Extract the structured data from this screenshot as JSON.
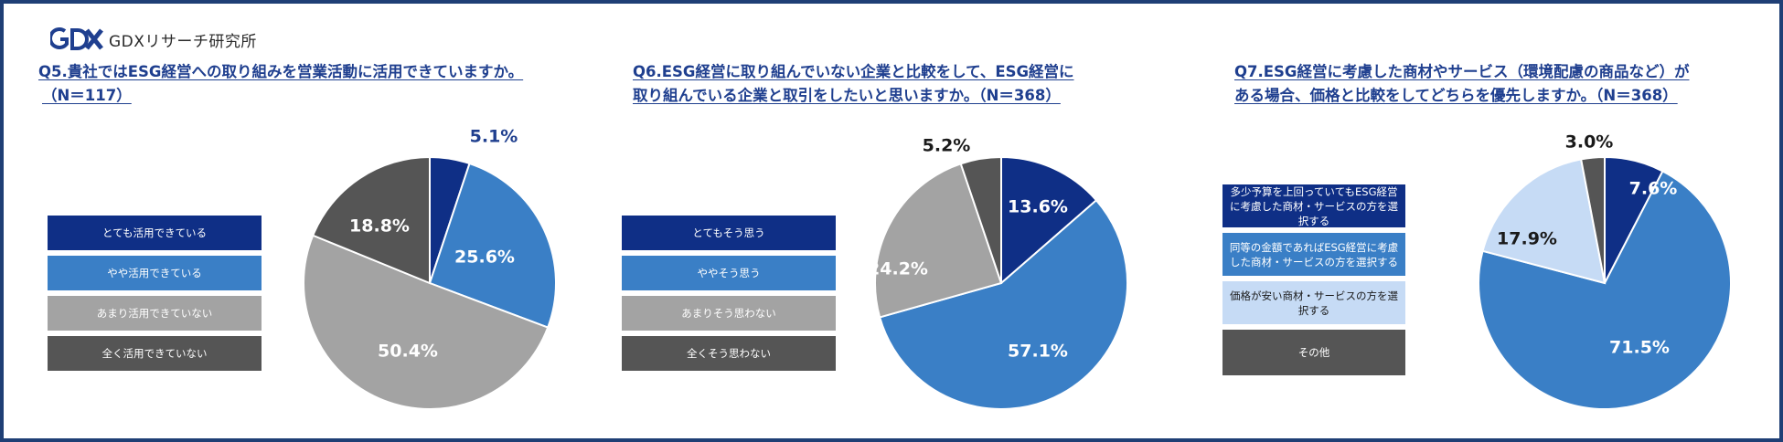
{
  "brand": {
    "logo_mark": "GDX",
    "name": "GDXリサーチ研究所"
  },
  "colors": {
    "navy": "#0f2f86",
    "blue": "#3a7fc6",
    "gray": "#a3a3a3",
    "dark_gray": "#555555",
    "light_blue": "#c6dbf5",
    "title": "#1f3f8f",
    "frame": "#1f3f75"
  },
  "charts": [
    {
      "title_line1": "Q5.貴社ではESG経営への取り組みを営業活動に活用できていますか。",
      "title_line2": "（N＝117）",
      "legend": [
        "とても活用できている",
        "やや活用できている",
        "あまり活用できていない",
        "全く活用できていない"
      ]
    },
    {
      "title_line1": "Q6.ESG経営に取り組んでいない企業と比較をして、ESG経営に",
      "title_line2": "取り組んでいる企業と取引をしたいと思いますか。（N＝368）",
      "legend": [
        "とてもそう思う",
        "ややそう思う",
        "あまりそう思わない",
        "全くそう思わない"
      ]
    },
    {
      "title_line1": "Q7.ESG経営に考慮した商材やサービス（環境配慮の商品など）が",
      "title_line2": "ある場合、価格と比較をしてどちらを優先しますか。（N＝368）",
      "legend": [
        "多少予算を上回っていてもESG経営に考慮した商材・サービスの方を選択する",
        "同等の金額であればESG経営に考慮した商材・サービスの方を選択する",
        "価格が安い商材・サービスの方を選択する",
        "その他"
      ]
    }
  ],
  "chart_data": [
    {
      "type": "pie",
      "title": "Q5.貴社ではESG経営への取り組みを営業活動に活用できていますか。（N＝117）",
      "labels": [
        "とても活用できている",
        "やや活用できている",
        "あまり活用できていない",
        "全く活用できていない"
      ],
      "values": [
        5.1,
        25.6,
        50.4,
        18.8
      ],
      "value_labels": [
        "5.1%",
        "25.6%",
        "50.4%",
        "18.8%"
      ],
      "colors": [
        "#0f2f86",
        "#3a7fc6",
        "#a3a3a3",
        "#555555"
      ],
      "legend_position": "left"
    },
    {
      "type": "pie",
      "title": "Q6.ESG経営に取り組んでいない企業と比較をして、ESG経営に取り組んでいる企業と取引をしたいと思いますか。（N＝368）",
      "labels": [
        "とてもそう思う",
        "ややそう思う",
        "あまりそう思わない",
        "全くそう思わない"
      ],
      "values": [
        13.6,
        57.1,
        24.2,
        5.2
      ],
      "value_labels": [
        "13.6%",
        "57.1%",
        "24.2%",
        "5.2%"
      ],
      "colors": [
        "#0f2f86",
        "#3a7fc6",
        "#a3a3a3",
        "#555555"
      ],
      "legend_position": "left"
    },
    {
      "type": "pie",
      "title": "Q7.ESG経営に考慮した商材やサービス（環境配慮の商品など）がある場合、価格と比較をしてどちらを優先しますか。（N＝368）",
      "labels": [
        "多少予算を上回っていてもESG経営に考慮した商材・サービスの方を選択する",
        "同等の金額であればESG経営に考慮した商材・サービスの方を選択する",
        "価格が安い商材・サービスの方を選択する",
        "その他"
      ],
      "values": [
        7.6,
        71.5,
        17.9,
        3.0
      ],
      "value_labels": [
        "7.6%",
        "71.5%",
        "17.9%",
        "3.0%"
      ],
      "colors": [
        "#0f2f86",
        "#3a7fc6",
        "#c6dbf5",
        "#555555"
      ],
      "legend_position": "left"
    }
  ]
}
